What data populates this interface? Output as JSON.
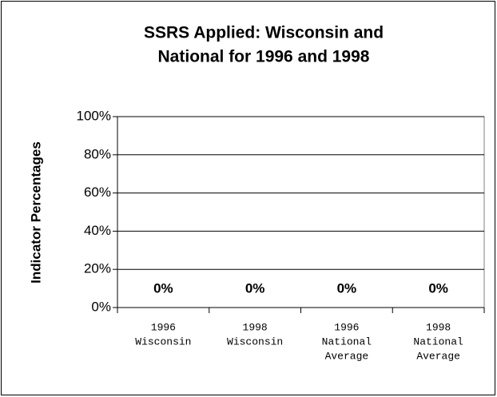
{
  "chart_data": {
    "type": "bar",
    "title": [
      "SSRS Applied: Wisconsin and",
      "National for 1996 and 1998"
    ],
    "y_label": "Indicator Percentages",
    "categories": [
      [
        "1996",
        "Wisconsin"
      ],
      [
        "1998",
        "Wisconsin"
      ],
      [
        "1996",
        "National",
        "Average"
      ],
      [
        "1998",
        "National",
        "Average"
      ]
    ],
    "values": [
      0,
      0,
      0,
      0
    ],
    "value_labels": [
      "0%",
      "0%",
      "0%",
      "0%"
    ],
    "ylim": [
      0,
      100
    ],
    "yticks": [
      {
        "value": 0,
        "label": "0%"
      },
      {
        "value": 20,
        "label": "20%"
      },
      {
        "value": 40,
        "label": "40%"
      },
      {
        "value": 60,
        "label": "60%"
      },
      {
        "value": 80,
        "label": "80%"
      },
      {
        "value": 100,
        "label": "100%"
      }
    ],
    "grid": true
  }
}
